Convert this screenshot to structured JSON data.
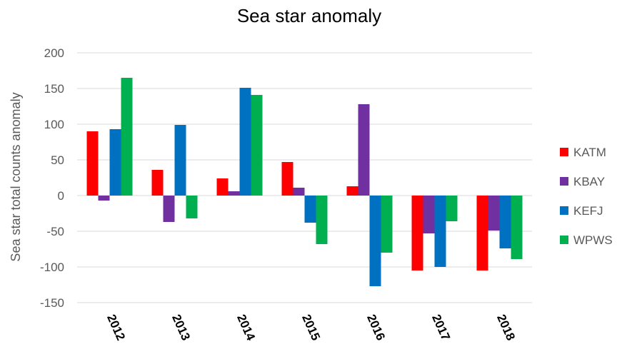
{
  "chart_data": {
    "type": "bar",
    "title": "Sea star anomaly",
    "xlabel": "",
    "ylabel": "Sea star total counts anomaly",
    "ylim": [
      -150,
      200
    ],
    "yticks": [
      200,
      150,
      100,
      50,
      0,
      -50,
      -100,
      -150
    ],
    "grid": true,
    "legend_position": "right",
    "categories": [
      "2012",
      "2013",
      "2014",
      "2015",
      "2016",
      "2017",
      "2018"
    ],
    "series": [
      {
        "name": "KATM",
        "color": "#ff0000",
        "values": [
          90,
          36,
          24,
          47,
          13,
          -105,
          -105
        ]
      },
      {
        "name": "KBAY",
        "color": "#7030a0",
        "values": [
          -7,
          -37,
          6,
          11,
          128,
          -53,
          -49
        ]
      },
      {
        "name": "KEFJ",
        "color": "#0070c0",
        "values": [
          93,
          99,
          151,
          -38,
          -127,
          -100,
          -74
        ]
      },
      {
        "name": "WPWS",
        "color": "#00b050",
        "values": [
          165,
          -32,
          141,
          -68,
          -80,
          -36,
          -89
        ]
      }
    ]
  }
}
